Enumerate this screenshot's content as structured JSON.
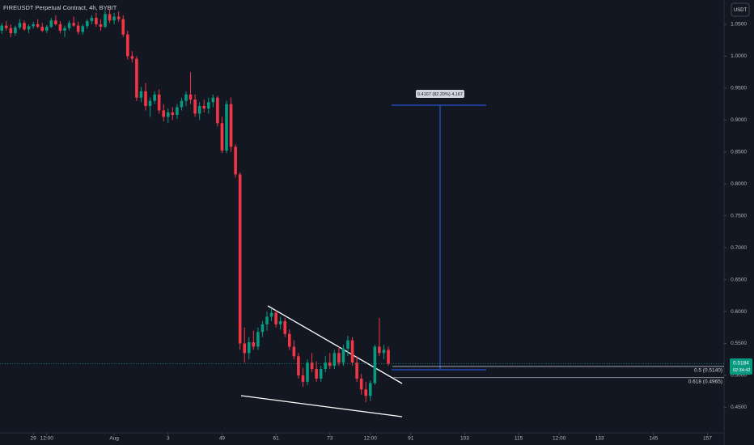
{
  "chart_data": {
    "type": "candlestick",
    "title": "FIREUSDT Perpetual Contract, 4h, BYBIT",
    "currency": "USDT",
    "up_color": "#089981",
    "down_color": "#f23645",
    "ylim": [
      0.41,
      1.088
    ],
    "yticks": [
      {
        "value": 1.05,
        "label": "1.0500"
      },
      {
        "value": 1.0,
        "label": "1.0000"
      },
      {
        "value": 0.95,
        "label": "0.9500"
      },
      {
        "value": 0.9,
        "label": "0.9000"
      },
      {
        "value": 0.85,
        "label": "0.8500"
      },
      {
        "value": 0.8,
        "label": "0.8000"
      },
      {
        "value": 0.75,
        "label": "0.7500"
      },
      {
        "value": 0.7,
        "label": "0.7000"
      },
      {
        "value": 0.65,
        "label": "0.6500"
      },
      {
        "value": 0.6,
        "label": "0.6000"
      },
      {
        "value": 0.55,
        "label": "0.5500"
      },
      {
        "value": 0.5,
        "label": "0.5000"
      },
      {
        "value": 0.45,
        "label": "0.4500"
      }
    ],
    "xlim": [
      -0.4,
      160.7
    ],
    "xticks": [
      {
        "value": 7,
        "label": "29"
      },
      {
        "value": 10,
        "label": "12:00"
      },
      {
        "value": 25,
        "label": "Aug"
      },
      {
        "value": 37,
        "label": "3"
      },
      49,
      61,
      73,
      {
        "value": 82,
        "label": "12:00"
      },
      91,
      103,
      115,
      {
        "value": 124,
        "label": "12:00"
      },
      133,
      145,
      157
    ],
    "x": [
      0,
      1,
      2,
      3,
      4,
      5,
      6,
      7,
      8,
      9,
      10,
      11,
      12,
      13,
      14,
      15,
      16,
      17,
      18,
      19,
      20,
      21,
      22,
      23,
      24,
      25,
      26,
      27,
      28,
      29,
      30,
      31,
      32,
      33,
      34,
      35,
      36,
      37,
      38,
      39,
      40,
      41,
      42,
      43,
      44,
      45,
      46,
      47,
      48,
      49,
      50,
      51,
      52,
      53,
      54,
      55,
      56,
      57,
      58,
      59,
      60,
      61,
      62,
      63,
      64,
      65,
      66,
      67,
      68,
      69,
      70,
      71,
      72,
      73,
      74,
      75,
      76,
      77,
      78,
      79,
      80,
      81,
      82,
      83,
      84,
      85,
      86
    ],
    "candles": [
      [
        1.04,
        1.052,
        1.035,
        1.048
      ],
      [
        1.048,
        1.055,
        1.04,
        1.044
      ],
      [
        1.044,
        1.05,
        1.03,
        1.036
      ],
      [
        1.036,
        1.048,
        1.032,
        1.045
      ],
      [
        1.045,
        1.058,
        1.042,
        1.052
      ],
      [
        1.052,
        1.056,
        1.04,
        1.042
      ],
      [
        1.042,
        1.05,
        1.036,
        1.047
      ],
      [
        1.047,
        1.054,
        1.043,
        1.05
      ],
      [
        1.05,
        1.058,
        1.044,
        1.046
      ],
      [
        1.046,
        1.052,
        1.038,
        1.04
      ],
      [
        1.04,
        1.049,
        1.036,
        1.046
      ],
      [
        1.046,
        1.06,
        1.044,
        1.056
      ],
      [
        1.056,
        1.064,
        1.048,
        1.05
      ],
      [
        1.05,
        1.055,
        1.036,
        1.04
      ],
      [
        1.04,
        1.048,
        1.03,
        1.044
      ],
      [
        1.044,
        1.056,
        1.04,
        1.052
      ],
      [
        1.052,
        1.062,
        1.046,
        1.048
      ],
      [
        1.048,
        1.054,
        1.034,
        1.038
      ],
      [
        1.038,
        1.05,
        1.034,
        1.047
      ],
      [
        1.047,
        1.058,
        1.043,
        1.055
      ],
      [
        1.055,
        1.064,
        1.05,
        1.06
      ],
      [
        1.06,
        1.068,
        1.046,
        1.05
      ],
      [
        1.05,
        1.058,
        1.04,
        1.046
      ],
      [
        1.046,
        1.072,
        1.044,
        1.066
      ],
      [
        1.066,
        1.074,
        1.052,
        1.056
      ],
      [
        1.056,
        1.068,
        1.05,
        1.062
      ],
      [
        1.062,
        1.07,
        1.054,
        1.058
      ],
      [
        1.058,
        1.064,
        1.03,
        1.034
      ],
      [
        1.034,
        1.04,
        0.995,
        1.0
      ],
      [
        1.0,
        1.008,
        0.99,
        0.996
      ],
      [
        0.996,
        1.0,
        0.93,
        0.935
      ],
      [
        0.935,
        0.952,
        0.928,
        0.945
      ],
      [
        0.945,
        0.958,
        0.915,
        0.922
      ],
      [
        0.922,
        0.935,
        0.905,
        0.93
      ],
      [
        0.93,
        0.945,
        0.925,
        0.94
      ],
      [
        0.94,
        0.948,
        0.91,
        0.915
      ],
      [
        0.915,
        0.925,
        0.898,
        0.905
      ],
      [
        0.905,
        0.918,
        0.895,
        0.912
      ],
      [
        0.912,
        0.92,
        0.9,
        0.908
      ],
      [
        0.908,
        0.925,
        0.902,
        0.92
      ],
      [
        0.92,
        0.935,
        0.915,
        0.93
      ],
      [
        0.93,
        0.945,
        0.922,
        0.94
      ],
      [
        0.94,
        0.975,
        0.925,
        0.932
      ],
      [
        0.932,
        0.94,
        0.905,
        0.91
      ],
      [
        0.91,
        0.928,
        0.9,
        0.922
      ],
      [
        0.922,
        0.932,
        0.912,
        0.918
      ],
      [
        0.918,
        0.935,
        0.91,
        0.928
      ],
      [
        0.928,
        0.94,
        0.92,
        0.935
      ],
      [
        0.935,
        0.938,
        0.89,
        0.895
      ],
      [
        0.895,
        0.905,
        0.848,
        0.852
      ],
      [
        0.852,
        0.93,
        0.848,
        0.925
      ],
      [
        0.925,
        0.935,
        0.85,
        0.858
      ],
      [
        0.858,
        0.862,
        0.81,
        0.815
      ],
      [
        0.815,
        0.818,
        0.54,
        0.55
      ],
      [
        0.55,
        0.575,
        0.52,
        0.535
      ],
      [
        0.535,
        0.56,
        0.525,
        0.552
      ],
      [
        0.552,
        0.57,
        0.54,
        0.545
      ],
      [
        0.545,
        0.575,
        0.54,
        0.568
      ],
      [
        0.568,
        0.585,
        0.56,
        0.58
      ],
      [
        0.58,
        0.6,
        0.57,
        0.592
      ],
      [
        0.592,
        0.605,
        0.585,
        0.598
      ],
      [
        0.598,
        0.602,
        0.575,
        0.58
      ],
      [
        0.58,
        0.592,
        0.572,
        0.585
      ],
      [
        0.585,
        0.59,
        0.56,
        0.565
      ],
      [
        0.565,
        0.572,
        0.54,
        0.545
      ],
      [
        0.545,
        0.555,
        0.525,
        0.53
      ],
      [
        0.53,
        0.535,
        0.495,
        0.5
      ],
      [
        0.5,
        0.512,
        0.482,
        0.49
      ],
      [
        0.49,
        0.525,
        0.485,
        0.52
      ],
      [
        0.52,
        0.535,
        0.505,
        0.51
      ],
      [
        0.51,
        0.522,
        0.49,
        0.495
      ],
      [
        0.495,
        0.515,
        0.49,
        0.51
      ],
      [
        0.51,
        0.53,
        0.505,
        0.52
      ],
      [
        0.52,
        0.535,
        0.51,
        0.515
      ],
      [
        0.515,
        0.54,
        0.51,
        0.535
      ],
      [
        0.535,
        0.545,
        0.515,
        0.52
      ],
      [
        0.52,
        0.548,
        0.515,
        0.542
      ],
      [
        0.542,
        0.562,
        0.53,
        0.555
      ],
      [
        0.555,
        0.56,
        0.515,
        0.52
      ],
      [
        0.52,
        0.53,
        0.49,
        0.495
      ],
      [
        0.495,
        0.502,
        0.47,
        0.478
      ],
      [
        0.478,
        0.49,
        0.458,
        0.468
      ],
      [
        0.468,
        0.492,
        0.46,
        0.488
      ],
      [
        0.488,
        0.548,
        0.485,
        0.545
      ],
      [
        0.545,
        0.59,
        0.53,
        0.535
      ],
      [
        0.535,
        0.548,
        0.525,
        0.54
      ],
      [
        0.54,
        0.545,
        0.515,
        0.5184
      ]
    ],
    "fib_levels": [
      {
        "label": "0.5 (0.5140)",
        "price": 0.514
      },
      {
        "label": "0.618 (0.4965)",
        "price": 0.4965
      }
    ],
    "measure_label": "0.4167 (82.20%) 4,167",
    "last_price": {
      "value": 0.5184,
      "label": "0.5184"
    },
    "countdown": "02:34:42"
  }
}
